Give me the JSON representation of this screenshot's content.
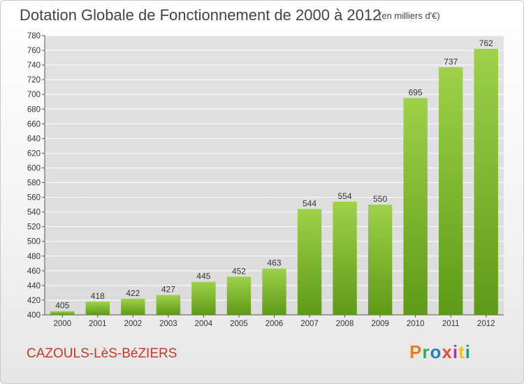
{
  "header": {
    "title": "Dotation Globale de Fonctionnement de 2000 à 2012",
    "subtitle": "(en milliers d'€)"
  },
  "footer": {
    "commune": "CAZOULS-LèS-BéZIERS",
    "logo_letters": [
      "P",
      "r",
      "o",
      "x",
      "i",
      "t",
      "i"
    ],
    "logo_colors": [
      "#e67e22",
      "#27ae60",
      "#2980b9",
      "#e74c3c",
      "#8e44ad",
      "#f1c40f",
      "#16a085"
    ]
  },
  "chart_data": {
    "type": "bar",
    "categories": [
      "2000",
      "2001",
      "2002",
      "2003",
      "2004",
      "2005",
      "2006",
      "2007",
      "2008",
      "2009",
      "2010",
      "2011",
      "2012"
    ],
    "values": [
      405,
      418,
      422,
      427,
      445,
      452,
      463,
      544,
      554,
      550,
      695,
      737,
      762
    ],
    "ylim": [
      400,
      780
    ],
    "ytick_step": 20,
    "bar_color": "#7cbd2e",
    "grid": "horizontal"
  }
}
